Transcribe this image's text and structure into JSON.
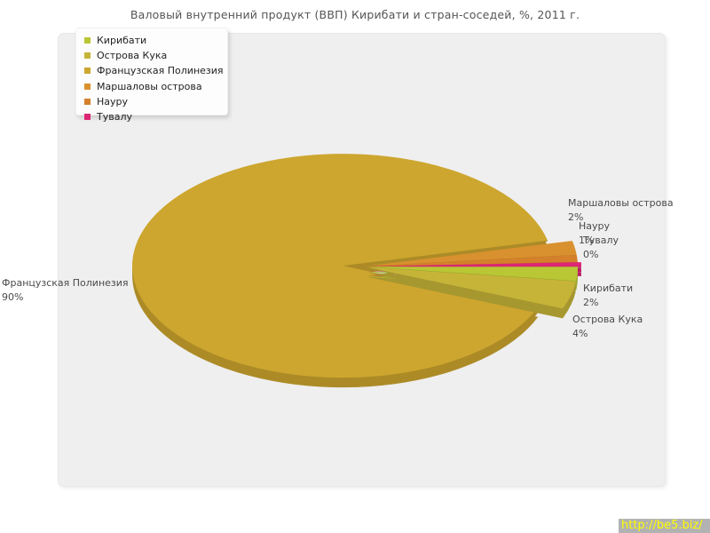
{
  "chart_data": {
    "type": "pie",
    "style": "3d-exploded-pie",
    "title": "Валовый внутренний продукт (ВВП) Кирибати и стран-соседей, %, 2011 г.",
    "unit": "%",
    "year": "2011 г.",
    "legend_position": "top-left",
    "slices": [
      {
        "label": "Кирибати",
        "value": 2,
        "display": "2%",
        "color": "#b9c735"
      },
      {
        "label": "Острова Кука",
        "value": 4,
        "display": "4%",
        "color": "#c6b438"
      },
      {
        "label": "Французская Полинезия",
        "value": 90,
        "display": "90%",
        "color": "#cda62f"
      },
      {
        "label": "Маршаловы острова",
        "value": 2,
        "display": "2%",
        "color": "#d9912f"
      },
      {
        "label": "Науру",
        "value": 1,
        "display": "1%",
        "color": "#d5802b"
      },
      {
        "label": "Тувалу",
        "value": 0,
        "display": "0%",
        "color": "#dd2674",
        "sweep": 0.6
      }
    ]
  },
  "footer": {
    "link_text": "http://be5.biz/",
    "link_color": "#ffff00",
    "bar_color": "#b2b2b2"
  }
}
